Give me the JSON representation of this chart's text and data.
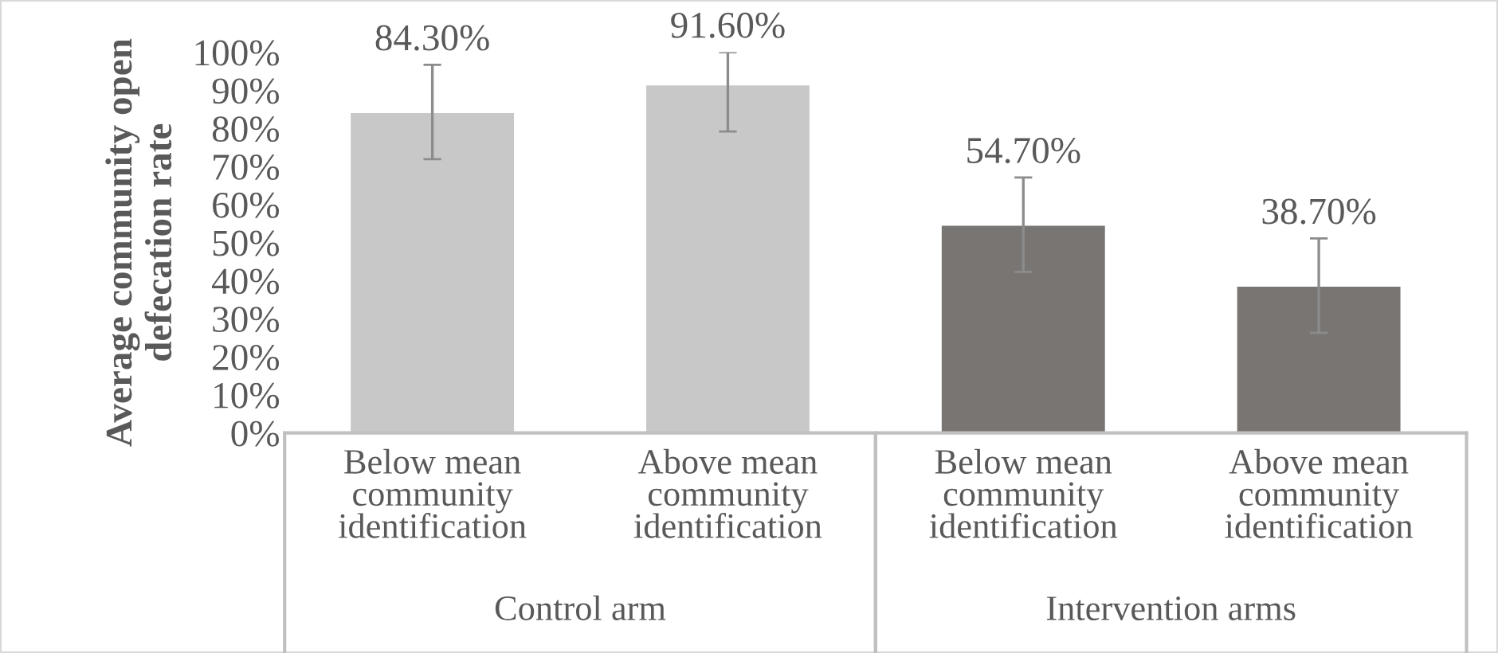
{
  "chart_data": {
    "type": "bar",
    "ylabel": "Average community open defecation rate",
    "categories": [
      "Below mean\ncommunity\nidentification",
      "Above mean\ncommunity\nidentification",
      "Below mean\ncommunity\nidentification",
      "Above mean\ncommunity\nidentification"
    ],
    "values": [
      84.3,
      91.6,
      54.7,
      38.7
    ],
    "colors": [
      "#c8c8c8",
      "#c8c8c8",
      "#797572",
      "#797572"
    ],
    "errors": [
      12.4,
      [
        79.2,
        100
      ],
      12.4,
      12.4
    ],
    "value_labels": [
      "84.30%",
      "91.60%",
      "54.70%",
      "38.70%"
    ],
    "ylim": [
      0,
      100
    ],
    "yticks": [
      {
        "value": 0,
        "label": "0%"
      },
      {
        "value": 10,
        "label": "10%"
      },
      {
        "value": 20,
        "label": "20%"
      },
      {
        "value": 30,
        "label": "30%"
      },
      {
        "value": 40,
        "label": "40%"
      },
      {
        "value": 50,
        "label": "50%"
      },
      {
        "value": 60,
        "label": "60%"
      },
      {
        "value": 70,
        "label": "70%"
      },
      {
        "value": 80,
        "label": "80%"
      },
      {
        "value": 90,
        "label": "90%"
      },
      {
        "value": 100,
        "label": "100%"
      }
    ],
    "annotations": [
      "Control arm",
      "Intervention arms"
    ],
    "grid": false
  }
}
